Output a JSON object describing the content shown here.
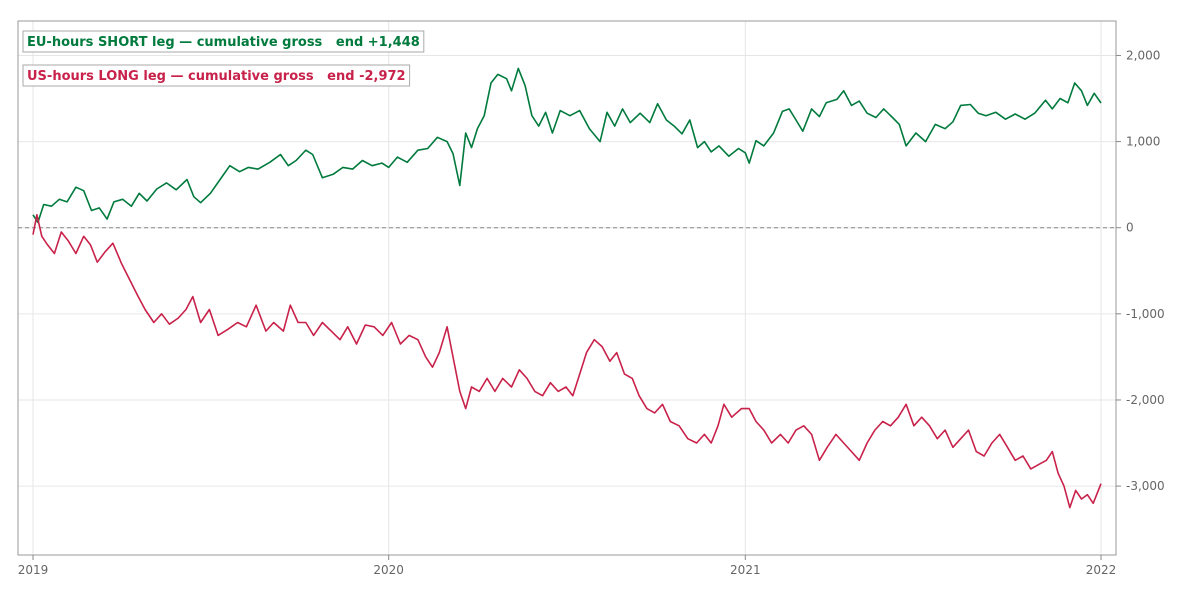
{
  "chart_data": {
    "type": "line",
    "title": "",
    "xlabel": "",
    "ylabel": "",
    "xlim": [
      "2019-01-01",
      "2022-01-01"
    ],
    "ylim": [
      -3800,
      2400
    ],
    "x_ticks": [
      {
        "date": "2019-01-01",
        "label": "2019"
      },
      {
        "date": "2020-01-01",
        "label": "2020"
      },
      {
        "date": "2021-01-01",
        "label": "2021"
      },
      {
        "date": "2022-01-01",
        "label": "2022"
      }
    ],
    "y_ticks": [
      {
        "value": 2000,
        "label": "2,000"
      },
      {
        "value": 1000,
        "label": "1,000"
      },
      {
        "value": 0,
        "label": "0"
      },
      {
        "value": -1000,
        "label": "-1,000"
      },
      {
        "value": -2000,
        "label": "-2,000"
      },
      {
        "value": -3000,
        "label": "-3,000"
      }
    ],
    "grid": true,
    "zero_line": "dashed",
    "legend_placement": "top-left",
    "series": [
      {
        "name": "EU-hours SHORT leg — cumulative gross   end +1,448",
        "color": "#007a3d",
        "points": [
          [
            "2019-01-01",
            150
          ],
          [
            "2019-01-06",
            60
          ],
          [
            "2019-01-12",
            270
          ],
          [
            "2019-01-20",
            250
          ],
          [
            "2019-01-28",
            330
          ],
          [
            "2019-02-05",
            300
          ],
          [
            "2019-02-14",
            470
          ],
          [
            "2019-02-22",
            430
          ],
          [
            "2019-03-02",
            200
          ],
          [
            "2019-03-10",
            230
          ],
          [
            "2019-03-18",
            100
          ],
          [
            "2019-03-25",
            300
          ],
          [
            "2019-04-03",
            330
          ],
          [
            "2019-04-12",
            250
          ],
          [
            "2019-04-20",
            400
          ],
          [
            "2019-04-28",
            310
          ],
          [
            "2019-05-08",
            450
          ],
          [
            "2019-05-18",
            520
          ],
          [
            "2019-05-28",
            440
          ],
          [
            "2019-06-08",
            560
          ],
          [
            "2019-06-15",
            360
          ],
          [
            "2019-06-22",
            290
          ],
          [
            "2019-07-02",
            400
          ],
          [
            "2019-07-12",
            560
          ],
          [
            "2019-07-22",
            720
          ],
          [
            "2019-08-01",
            650
          ],
          [
            "2019-08-10",
            700
          ],
          [
            "2019-08-20",
            680
          ],
          [
            "2019-09-01",
            760
          ],
          [
            "2019-09-12",
            850
          ],
          [
            "2019-09-20",
            720
          ],
          [
            "2019-09-28",
            780
          ],
          [
            "2019-10-08",
            900
          ],
          [
            "2019-10-15",
            850
          ],
          [
            "2019-10-25",
            580
          ],
          [
            "2019-11-05",
            620
          ],
          [
            "2019-11-15",
            700
          ],
          [
            "2019-11-25",
            680
          ],
          [
            "2019-12-05",
            780
          ],
          [
            "2019-12-15",
            720
          ],
          [
            "2019-12-25",
            750
          ],
          [
            "2020-01-01",
            700
          ],
          [
            "2020-01-10",
            820
          ],
          [
            "2020-01-20",
            760
          ],
          [
            "2020-01-31",
            900
          ],
          [
            "2020-02-10",
            920
          ],
          [
            "2020-02-20",
            1050
          ],
          [
            "2020-03-01",
            1000
          ],
          [
            "2020-03-07",
            860
          ],
          [
            "2020-03-14",
            490
          ],
          [
            "2020-03-20",
            1100
          ],
          [
            "2020-03-26",
            930
          ],
          [
            "2020-04-01",
            1150
          ],
          [
            "2020-04-08",
            1300
          ],
          [
            "2020-04-15",
            1680
          ],
          [
            "2020-04-22",
            1780
          ],
          [
            "2020-05-01",
            1730
          ],
          [
            "2020-05-06",
            1590
          ],
          [
            "2020-05-13",
            1850
          ],
          [
            "2020-05-20",
            1650
          ],
          [
            "2020-05-27",
            1300
          ],
          [
            "2020-06-03",
            1180
          ],
          [
            "2020-06-10",
            1340
          ],
          [
            "2020-06-17",
            1100
          ],
          [
            "2020-06-25",
            1360
          ],
          [
            "2020-07-05",
            1300
          ],
          [
            "2020-07-15",
            1360
          ],
          [
            "2020-07-25",
            1150
          ],
          [
            "2020-08-05",
            1000
          ],
          [
            "2020-08-12",
            1340
          ],
          [
            "2020-08-20",
            1180
          ],
          [
            "2020-08-28",
            1380
          ],
          [
            "2020-09-05",
            1220
          ],
          [
            "2020-09-15",
            1330
          ],
          [
            "2020-09-25",
            1220
          ],
          [
            "2020-10-03",
            1440
          ],
          [
            "2020-10-12",
            1250
          ],
          [
            "2020-10-20",
            1180
          ],
          [
            "2020-10-28",
            1090
          ],
          [
            "2020-11-05",
            1250
          ],
          [
            "2020-11-13",
            930
          ],
          [
            "2020-11-20",
            1000
          ],
          [
            "2020-11-27",
            880
          ],
          [
            "2020-12-05",
            950
          ],
          [
            "2020-12-15",
            830
          ],
          [
            "2020-12-25",
            920
          ],
          [
            "2021-01-01",
            870
          ],
          [
            "2021-01-05",
            750
          ],
          [
            "2021-01-12",
            1010
          ],
          [
            "2021-01-20",
            950
          ],
          [
            "2021-01-30",
            1100
          ],
          [
            "2021-02-08",
            1350
          ],
          [
            "2021-02-15",
            1380
          ],
          [
            "2021-02-22",
            1250
          ],
          [
            "2021-03-01",
            1120
          ],
          [
            "2021-03-10",
            1380
          ],
          [
            "2021-03-18",
            1290
          ],
          [
            "2021-03-25",
            1450
          ],
          [
            "2021-04-05",
            1490
          ],
          [
            "2021-04-12",
            1590
          ],
          [
            "2021-04-20",
            1420
          ],
          [
            "2021-04-28",
            1470
          ],
          [
            "2021-05-06",
            1330
          ],
          [
            "2021-05-15",
            1280
          ],
          [
            "2021-05-23",
            1380
          ],
          [
            "2021-06-01",
            1280
          ],
          [
            "2021-06-08",
            1200
          ],
          [
            "2021-06-15",
            950
          ],
          [
            "2021-06-25",
            1100
          ],
          [
            "2021-07-05",
            1000
          ],
          [
            "2021-07-15",
            1200
          ],
          [
            "2021-07-25",
            1150
          ],
          [
            "2021-08-02",
            1230
          ],
          [
            "2021-08-10",
            1420
          ],
          [
            "2021-08-20",
            1430
          ],
          [
            "2021-08-28",
            1330
          ],
          [
            "2021-09-05",
            1300
          ],
          [
            "2021-09-15",
            1340
          ],
          [
            "2021-09-25",
            1260
          ],
          [
            "2021-10-05",
            1320
          ],
          [
            "2021-10-15",
            1260
          ],
          [
            "2021-10-25",
            1330
          ],
          [
            "2021-11-05",
            1480
          ],
          [
            "2021-11-12",
            1380
          ],
          [
            "2021-11-20",
            1500
          ],
          [
            "2021-11-28",
            1450
          ],
          [
            "2021-12-05",
            1680
          ],
          [
            "2021-12-12",
            1590
          ],
          [
            "2021-12-18",
            1420
          ],
          [
            "2021-12-25",
            1560
          ],
          [
            "2022-01-01",
            1448
          ]
        ]
      },
      {
        "name": "US-hours LONG leg — cumulative gross   end -2,972",
        "color": "#c8224a",
        "points": [
          [
            "2019-01-01",
            -80
          ],
          [
            "2019-01-05",
            150
          ],
          [
            "2019-01-10",
            -100
          ],
          [
            "2019-01-16",
            -200
          ],
          [
            "2019-01-23",
            -300
          ],
          [
            "2019-01-30",
            -50
          ],
          [
            "2019-02-06",
            -150
          ],
          [
            "2019-02-14",
            -300
          ],
          [
            "2019-02-22",
            -100
          ],
          [
            "2019-03-01",
            -200
          ],
          [
            "2019-03-08",
            -400
          ],
          [
            "2019-03-16",
            -280
          ],
          [
            "2019-03-24",
            -180
          ],
          [
            "2019-04-02",
            -420
          ],
          [
            "2019-04-10",
            -600
          ],
          [
            "2019-04-18",
            -780
          ],
          [
            "2019-04-26",
            -950
          ],
          [
            "2019-05-05",
            -1100
          ],
          [
            "2019-05-13",
            -1000
          ],
          [
            "2019-05-21",
            -1120
          ],
          [
            "2019-05-30",
            -1050
          ],
          [
            "2019-06-07",
            -950
          ],
          [
            "2019-06-14",
            -800
          ],
          [
            "2019-06-22",
            -1100
          ],
          [
            "2019-07-01",
            -950
          ],
          [
            "2019-07-10",
            -1250
          ],
          [
            "2019-07-20",
            -1180
          ],
          [
            "2019-07-30",
            -1100
          ],
          [
            "2019-08-08",
            -1150
          ],
          [
            "2019-08-18",
            -900
          ],
          [
            "2019-08-28",
            -1200
          ],
          [
            "2019-09-05",
            -1100
          ],
          [
            "2019-09-15",
            -1200
          ],
          [
            "2019-09-22",
            -900
          ],
          [
            "2019-09-30",
            -1100
          ],
          [
            "2019-10-08",
            -1100
          ],
          [
            "2019-10-16",
            -1250
          ],
          [
            "2019-10-25",
            -1100
          ],
          [
            "2019-11-03",
            -1200
          ],
          [
            "2019-11-12",
            -1300
          ],
          [
            "2019-11-20",
            -1150
          ],
          [
            "2019-11-29",
            -1350
          ],
          [
            "2019-12-08",
            -1130
          ],
          [
            "2019-12-17",
            -1150
          ],
          [
            "2019-12-26",
            -1250
          ],
          [
            "2020-01-04",
            -1100
          ],
          [
            "2020-01-13",
            -1350
          ],
          [
            "2020-01-22",
            -1250
          ],
          [
            "2020-01-31",
            -1300
          ],
          [
            "2020-02-08",
            -1500
          ],
          [
            "2020-02-15",
            -1620
          ],
          [
            "2020-02-22",
            -1450
          ],
          [
            "2020-03-01",
            -1150
          ],
          [
            "2020-03-07",
            -1500
          ],
          [
            "2020-03-14",
            -1900
          ],
          [
            "2020-03-20",
            -2100
          ],
          [
            "2020-03-26",
            -1850
          ],
          [
            "2020-04-03",
            -1900
          ],
          [
            "2020-04-11",
            -1750
          ],
          [
            "2020-04-19",
            -1900
          ],
          [
            "2020-04-27",
            -1750
          ],
          [
            "2020-05-06",
            -1850
          ],
          [
            "2020-05-14",
            -1650
          ],
          [
            "2020-05-22",
            -1750
          ],
          [
            "2020-05-30",
            -1900
          ],
          [
            "2020-06-07",
            -1950
          ],
          [
            "2020-06-15",
            -1800
          ],
          [
            "2020-06-23",
            -1900
          ],
          [
            "2020-07-01",
            -1850
          ],
          [
            "2020-07-08",
            -1950
          ],
          [
            "2020-07-15",
            -1700
          ],
          [
            "2020-07-22",
            -1450
          ],
          [
            "2020-07-30",
            -1300
          ],
          [
            "2020-08-07",
            -1380
          ],
          [
            "2020-08-15",
            -1550
          ],
          [
            "2020-08-22",
            -1450
          ],
          [
            "2020-08-30",
            -1700
          ],
          [
            "2020-09-07",
            -1750
          ],
          [
            "2020-09-14",
            -1950
          ],
          [
            "2020-09-22",
            -2100
          ],
          [
            "2020-09-30",
            -2150
          ],
          [
            "2020-10-08",
            -2050
          ],
          [
            "2020-10-16",
            -2250
          ],
          [
            "2020-10-25",
            -2300
          ],
          [
            "2020-11-03",
            -2450
          ],
          [
            "2020-11-12",
            -2500
          ],
          [
            "2020-11-20",
            -2400
          ],
          [
            "2020-11-27",
            -2500
          ],
          [
            "2020-12-04",
            -2300
          ],
          [
            "2020-12-10",
            -2050
          ],
          [
            "2020-12-18",
            -2200
          ],
          [
            "2020-12-28",
            -2100
          ],
          [
            "2021-01-05",
            -2100
          ],
          [
            "2021-01-12",
            -2250
          ],
          [
            "2021-01-20",
            -2350
          ],
          [
            "2021-01-28",
            -2500
          ],
          [
            "2021-02-06",
            -2400
          ],
          [
            "2021-02-14",
            -2500
          ],
          [
            "2021-02-22",
            -2350
          ],
          [
            "2021-03-02",
            -2300
          ],
          [
            "2021-03-10",
            -2400
          ],
          [
            "2021-03-18",
            -2700
          ],
          [
            "2021-03-26",
            -2550
          ],
          [
            "2021-04-04",
            -2400
          ],
          [
            "2021-04-12",
            -2500
          ],
          [
            "2021-04-20",
            -2600
          ],
          [
            "2021-04-28",
            -2700
          ],
          [
            "2021-05-06",
            -2500
          ],
          [
            "2021-05-14",
            -2350
          ],
          [
            "2021-05-22",
            -2250
          ],
          [
            "2021-05-30",
            -2300
          ],
          [
            "2021-06-07",
            -2200
          ],
          [
            "2021-06-15",
            -2050
          ],
          [
            "2021-06-23",
            -2300
          ],
          [
            "2021-07-01",
            -2200
          ],
          [
            "2021-07-09",
            -2300
          ],
          [
            "2021-07-17",
            -2450
          ],
          [
            "2021-07-25",
            -2350
          ],
          [
            "2021-08-02",
            -2550
          ],
          [
            "2021-08-10",
            -2450
          ],
          [
            "2021-08-18",
            -2350
          ],
          [
            "2021-08-26",
            -2600
          ],
          [
            "2021-09-03",
            -2650
          ],
          [
            "2021-09-11",
            -2500
          ],
          [
            "2021-09-19",
            -2400
          ],
          [
            "2021-09-27",
            -2550
          ],
          [
            "2021-10-05",
            -2700
          ],
          [
            "2021-10-13",
            -2650
          ],
          [
            "2021-10-21",
            -2800
          ],
          [
            "2021-10-29",
            -2750
          ],
          [
            "2021-11-06",
            -2700
          ],
          [
            "2021-11-12",
            -2600
          ],
          [
            "2021-11-18",
            -2850
          ],
          [
            "2021-11-24",
            -3000
          ],
          [
            "2021-11-30",
            -3250
          ],
          [
            "2021-12-06",
            -3050
          ],
          [
            "2021-12-12",
            -3150
          ],
          [
            "2021-12-18",
            -3100
          ],
          [
            "2021-12-24",
            -3200
          ],
          [
            "2022-01-01",
            -2972
          ]
        ]
      }
    ]
  }
}
